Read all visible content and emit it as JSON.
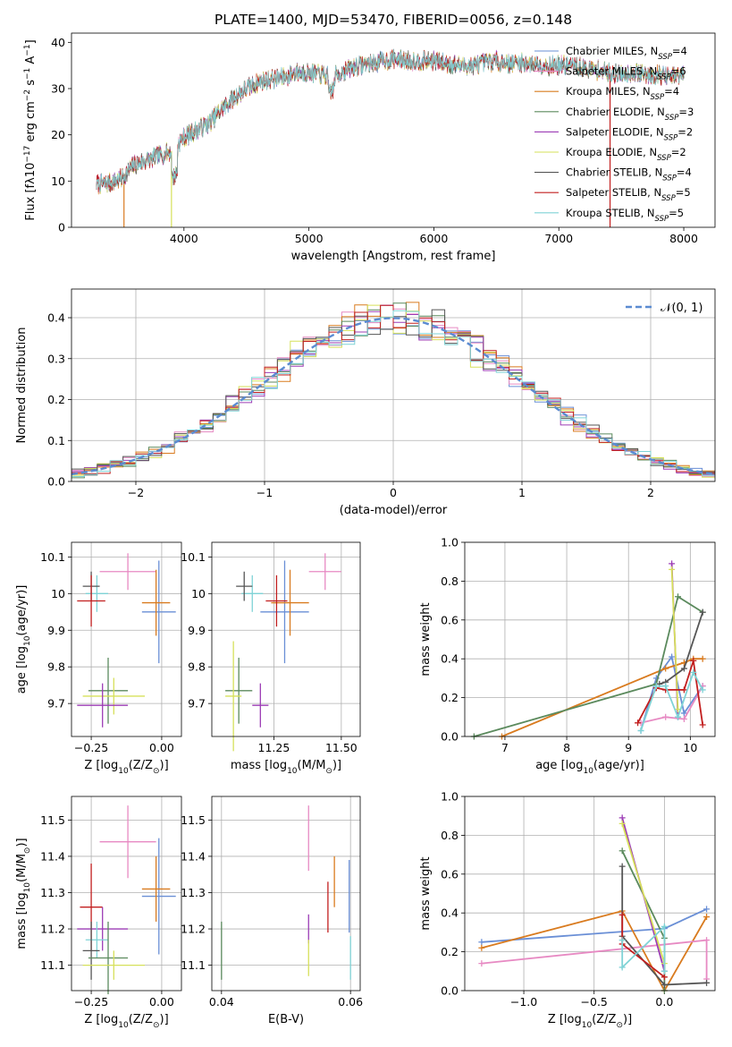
{
  "chart_data": [
    {
      "id": "spectrum",
      "type": "line",
      "title": "PLATE=1400, MJD=53470, FIBERID=0056, z=0.148",
      "xlabel": "wavelength [Angstrom, rest frame]",
      "ylabel": "Flux [fλ10⁻¹⁷ erg cm⁻² s⁻¹ A⁻¹]",
      "xlim": [
        3100,
        8250
      ],
      "ylim": [
        0,
        42
      ],
      "xticks": [
        4000,
        5000,
        6000,
        7000,
        8000
      ],
      "yticks": [
        0,
        10,
        20,
        30,
        40
      ],
      "grid": false,
      "legend_position": "top-right",
      "continuum": {
        "x": [
          3300,
          3400,
          3500,
          3600,
          3700,
          3800,
          3900,
          4000,
          4100,
          4200,
          4300,
          4400,
          4500,
          4600,
          4700,
          4800,
          4900,
          5000,
          5100,
          5200,
          5300,
          5400,
          5500,
          5600,
          5700,
          5800,
          5900,
          6000,
          6100,
          6200,
          6300,
          6400,
          6500,
          6600,
          6700,
          6800,
          6900,
          7000,
          7100,
          7200,
          7300,
          7400,
          7500,
          7600,
          7700,
          7800,
          7900,
          8000
        ],
        "y": [
          9.3,
          9.5,
          10.5,
          13.5,
          14.5,
          15.5,
          16.5,
          19.5,
          21.0,
          22.5,
          25.5,
          28.0,
          30.0,
          31.5,
          32.0,
          32.5,
          33.5,
          33.5,
          33.0,
          32.5,
          34.0,
          35.0,
          35.5,
          36.0,
          36.5,
          36.0,
          36.0,
          36.0,
          35.5,
          35.0,
          35.0,
          35.5,
          36.0,
          35.5,
          35.5,
          35.5,
          35.0,
          35.0,
          35.0,
          34.5,
          34.0,
          33.5,
          33.0,
          33.5,
          33.0,
          33.0,
          32.5,
          33.0
        ]
      },
      "series": [
        {
          "name": "Chabrier MILES, N_SSP=4",
          "color": "#6a8fd6",
          "drop_at": null
        },
        {
          "name": "Salpeter MILES, N_SSP=6",
          "color": "#e78ac3",
          "drop_at": null
        },
        {
          "name": "Kroupa MILES, N_SSP=4",
          "color": "#d97b1f",
          "drop_at": 3520
        },
        {
          "name": "Chabrier ELODIE, N_SSP=3",
          "color": "#5b8a5d",
          "drop_at": null
        },
        {
          "name": "Salpeter ELODIE, N_SSP=2",
          "color": "#9c3cb5",
          "drop_at": null
        },
        {
          "name": "Kroupa ELODIE, N_SSP=2",
          "color": "#d6e05a",
          "drop_at": 3900
        },
        {
          "name": "Chabrier STELIB, N_SSP=4",
          "color": "#555555",
          "drop_at": null
        },
        {
          "name": "Salpeter STELIB, N_SSP=5",
          "color": "#c21f1f",
          "drop_at": 7410
        },
        {
          "name": "Kroupa STELIB, N_SSP=5",
          "color": "#7fd3d6",
          "drop_at": null
        }
      ],
      "legend_labels": [
        {
          "prefix": "Chabrier MILES, N",
          "sub": "SSP",
          "suffix": "=4"
        },
        {
          "prefix": "Salpeter MILES, N",
          "sub": "SSP",
          "suffix": "=6"
        },
        {
          "prefix": "Kroupa MILES, N",
          "sub": "SSP",
          "suffix": "=4"
        },
        {
          "prefix": "Chabrier ELODIE, N",
          "sub": "SSP",
          "suffix": "=3"
        },
        {
          "prefix": "Salpeter ELODIE, N",
          "sub": "SSP",
          "suffix": "=2"
        },
        {
          "prefix": "Kroupa ELODIE, N",
          "sub": "SSP",
          "suffix": "=2"
        },
        {
          "prefix": "Chabrier STELIB, N",
          "sub": "SSP",
          "suffix": "=4"
        },
        {
          "prefix": "Salpeter STELIB, N",
          "sub": "SSP",
          "suffix": "=5"
        },
        {
          "prefix": "Kroupa STELIB, N",
          "sub": "SSP",
          "suffix": "=5"
        }
      ]
    },
    {
      "id": "residuals",
      "type": "histogram",
      "xlabel": "(data-model)/error",
      "ylabel": "Normed distribution",
      "xlim": [
        -2.5,
        2.5
      ],
      "ylim": [
        0,
        0.47
      ],
      "xticks": [
        -2,
        -1,
        0,
        1,
        2
      ],
      "yticks": [
        0.0,
        0.1,
        0.2,
        0.3,
        0.4
      ],
      "grid": true,
      "legend": "𝒩(0, 1)",
      "legend_position": "top-right",
      "bin_width": 0.1,
      "series_colors": [
        "#6a8fd6",
        "#e78ac3",
        "#d97b1f",
        "#5b8a5d",
        "#9c3cb5",
        "#d6e05a",
        "#555555",
        "#c21f1f",
        "#7fd3d6"
      ]
    },
    {
      "id": "age-vs-Z",
      "type": "errorbar",
      "xlabel": "Z [log₁₀(Z/Z⊙)]",
      "ylabel": "age  [log₁₀(age/yr)]",
      "xlim": [
        -0.32,
        0.07
      ],
      "ylim": [
        9.61,
        10.14
      ],
      "xticks": [
        -0.25,
        0.0
      ],
      "xticklabels": [
        "−0.25",
        "0.00"
      ],
      "yticks": [
        9.7,
        9.8,
        9.9,
        10.0,
        10.1
      ],
      "grid": true,
      "points": [
        {
          "x": -0.12,
          "y": 10.06,
          "xerr": 0.1,
          "yerr": 0.05,
          "color": "#e78ac3"
        },
        {
          "x": -0.01,
          "y": 9.95,
          "xerr": 0.06,
          "yerr": 0.14,
          "color": "#6a8fd6"
        },
        {
          "x": -0.02,
          "y": 9.975,
          "xerr": 0.05,
          "yerr": 0.09,
          "color": "#d97b1f"
        },
        {
          "x": -0.23,
          "y": 10.0,
          "xerr": 0.04,
          "yerr": 0.05,
          "color": "#7fd3d6"
        },
        {
          "x": -0.25,
          "y": 10.02,
          "xerr": 0.03,
          "yerr": 0.04,
          "color": "#555555"
        },
        {
          "x": -0.25,
          "y": 9.98,
          "xerr": 0.05,
          "yerr": 0.07,
          "color": "#c21f1f"
        },
        {
          "x": -0.19,
          "y": 9.735,
          "xerr": 0.07,
          "yerr": 0.09,
          "color": "#5b8a5d"
        },
        {
          "x": -0.17,
          "y": 9.72,
          "xerr": 0.11,
          "yerr": 0.05,
          "color": "#d6e05a"
        },
        {
          "x": -0.21,
          "y": 9.695,
          "xerr": 0.09,
          "yerr": 0.06,
          "color": "#9c3cb5"
        }
      ]
    },
    {
      "id": "age-vs-mass",
      "type": "errorbar",
      "xlabel": "mass [log₁₀(M/M⊙)]",
      "ylabel": "",
      "xlim": [
        11.02,
        11.57
      ],
      "ylim": [
        9.61,
        10.14
      ],
      "xticks": [
        11.25,
        11.5
      ],
      "xticklabels": [
        "11.25",
        "11.50"
      ],
      "yticks": [
        9.7,
        9.8,
        9.9,
        10.0,
        10.1
      ],
      "grid": true,
      "points": [
        {
          "x": 11.44,
          "y": 10.06,
          "xerr": 0.06,
          "yerr": 0.05,
          "color": "#e78ac3"
        },
        {
          "x": 11.29,
          "y": 9.95,
          "xerr": 0.09,
          "yerr": 0.14,
          "color": "#6a8fd6"
        },
        {
          "x": 11.31,
          "y": 9.975,
          "xerr": 0.07,
          "yerr": 0.09,
          "color": "#d97b1f"
        },
        {
          "x": 11.17,
          "y": 10.0,
          "xerr": 0.04,
          "yerr": 0.05,
          "color": "#7fd3d6"
        },
        {
          "x": 11.14,
          "y": 10.02,
          "xerr": 0.03,
          "yerr": 0.04,
          "color": "#555555"
        },
        {
          "x": 11.26,
          "y": 9.98,
          "xerr": 0.04,
          "yerr": 0.07,
          "color": "#c21f1f"
        },
        {
          "x": 11.12,
          "y": 9.735,
          "xerr": 0.05,
          "yerr": 0.09,
          "color": "#5b8a5d"
        },
        {
          "x": 11.1,
          "y": 9.72,
          "xerr": 0.03,
          "yerr": 0.15,
          "color": "#d6e05a"
        },
        {
          "x": 11.2,
          "y": 9.695,
          "xerr": 0.03,
          "yerr": 0.06,
          "color": "#9c3cb5"
        }
      ]
    },
    {
      "id": "weight-vs-age",
      "type": "line",
      "xlabel": "age  [log₁₀(age/yr)]",
      "ylabel": "mass weight",
      "xlim": [
        6.35,
        10.4
      ],
      "ylim": [
        0,
        1.0
      ],
      "xticks": [
        7,
        8,
        9,
        10
      ],
      "yticks": [
        0.0,
        0.2,
        0.4,
        0.6,
        0.8,
        1.0
      ],
      "grid": true,
      "series": [
        {
          "color": "#6a8fd6",
          "x": [
            9.2,
            9.45,
            9.7,
            9.9,
            10.2
          ],
          "y": [
            0.03,
            0.3,
            0.41,
            0.12,
            0.26
          ]
        },
        {
          "color": "#e78ac3",
          "x": [
            9.2,
            9.6,
            9.9,
            10.2
          ],
          "y": [
            0.07,
            0.1,
            0.09,
            0.26
          ]
        },
        {
          "color": "#d97b1f",
          "x": [
            6.95,
            9.6,
            9.9,
            10.05,
            10.2
          ],
          "y": [
            0.0,
            0.35,
            0.38,
            0.4,
            0.4
          ]
        },
        {
          "color": "#5b8a5d",
          "x": [
            6.5,
            9.45,
            9.8,
            10.2
          ],
          "y": [
            0.0,
            0.27,
            0.72,
            0.64
          ]
        },
        {
          "color": "#9c3cb5",
          "x": [
            9.7,
            9.8
          ],
          "y": [
            0.89,
            0.1
          ]
        },
        {
          "color": "#d6e05a",
          "x": [
            9.7,
            9.8
          ],
          "y": [
            0.86,
            0.14
          ]
        },
        {
          "color": "#555555",
          "x": [
            9.5,
            9.6,
            9.9,
            10.2
          ],
          "y": [
            0.27,
            0.28,
            0.35,
            0.64
          ]
        },
        {
          "color": "#c21f1f",
          "x": [
            9.15,
            9.45,
            9.6,
            9.9,
            10.05,
            10.2
          ],
          "y": [
            0.07,
            0.25,
            0.24,
            0.24,
            0.39,
            0.06
          ]
        },
        {
          "color": "#7fd3d6",
          "x": [
            9.2,
            9.45,
            9.6,
            9.8,
            10.05,
            10.2
          ],
          "y": [
            0.03,
            0.26,
            0.26,
            0.1,
            0.33,
            0.24
          ]
        }
      ]
    },
    {
      "id": "mass-vs-Z",
      "type": "errorbar",
      "xlabel": "Z [log₁₀(Z/Z⊙)]",
      "ylabel": "mass [log₁₀(M/M⊙)]",
      "xlim": [
        -0.32,
        0.07
      ],
      "ylim": [
        11.03,
        11.565
      ],
      "xticks": [
        -0.25,
        0.0
      ],
      "xticklabels": [
        "−0.25",
        "0.00"
      ],
      "yticks": [
        11.1,
        11.2,
        11.3,
        11.4,
        11.5
      ],
      "grid": true,
      "points": [
        {
          "x": -0.12,
          "y": 11.44,
          "xerr": 0.1,
          "yerr": 0.1,
          "color": "#e78ac3"
        },
        {
          "x": -0.01,
          "y": 11.29,
          "xerr": 0.06,
          "yerr": 0.16,
          "color": "#6a8fd6"
        },
        {
          "x": -0.02,
          "y": 11.31,
          "xerr": 0.05,
          "yerr": 0.09,
          "color": "#d97b1f"
        },
        {
          "x": -0.25,
          "y": 11.26,
          "xerr": 0.04,
          "yerr": 0.12,
          "color": "#c21f1f"
        },
        {
          "x": -0.21,
          "y": 11.2,
          "xerr": 0.09,
          "yerr": 0.06,
          "color": "#9c3cb5"
        },
        {
          "x": -0.23,
          "y": 11.17,
          "xerr": 0.04,
          "yerr": 0.05,
          "color": "#7fd3d6"
        },
        {
          "x": -0.25,
          "y": 11.14,
          "xerr": 0.03,
          "yerr": 0.08,
          "color": "#555555"
        },
        {
          "x": -0.19,
          "y": 11.12,
          "xerr": 0.07,
          "yerr": 0.1,
          "color": "#5b8a5d"
        },
        {
          "x": -0.17,
          "y": 11.1,
          "xerr": 0.11,
          "yerr": 0.04,
          "color": "#d6e05a"
        }
      ]
    },
    {
      "id": "mass-vs-ebv",
      "type": "errorbar",
      "xlabel": "E(B-V)",
      "ylabel": "",
      "xlim": [
        0.0385,
        0.0615
      ],
      "ylim": [
        11.03,
        11.565
      ],
      "xticks": [
        0.04,
        0.06
      ],
      "xticklabels": [
        "0.04",
        "0.06"
      ],
      "yticks": [
        11.1,
        11.2,
        11.3,
        11.4,
        11.5
      ],
      "grid": true,
      "points": [
        {
          "x": 0.0535,
          "y": 11.45,
          "xerr": 0,
          "yerr": 0.09,
          "color": "#e78ac3"
        },
        {
          "x": 0.0598,
          "y": 11.29,
          "xerr": 0,
          "yerr": 0.1,
          "color": "#6a8fd6"
        },
        {
          "x": 0.0575,
          "y": 11.33,
          "xerr": 0,
          "yerr": 0.07,
          "color": "#d97b1f"
        },
        {
          "x": 0.0565,
          "y": 11.26,
          "xerr": 0,
          "yerr": 0.07,
          "color": "#c21f1f"
        },
        {
          "x": 0.0535,
          "y": 11.2,
          "xerr": 0,
          "yerr": 0.04,
          "color": "#9c3cb5"
        },
        {
          "x": 0.0535,
          "y": 11.12,
          "xerr": 0,
          "yerr": 0.05,
          "color": "#d6e05a"
        },
        {
          "x": 0.06,
          "y": 11.12,
          "xerr": 0,
          "yerr": 0.06,
          "color": "#7fd3d6"
        },
        {
          "x": 0.04,
          "y": 11.14,
          "xerr": 0,
          "yerr": 0.08,
          "color": "#5b8a5d"
        }
      ]
    },
    {
      "id": "weight-vs-Z",
      "type": "line",
      "xlabel": "Z [log₁₀(Z/Z⊙)]",
      "ylabel": "mass weight",
      "xlim": [
        -1.42,
        0.36
      ],
      "ylim": [
        0,
        1.0
      ],
      "xticks": [
        -1.0,
        -0.5,
        0.0
      ],
      "xticklabels": [
        "−1.0",
        "−0.5",
        "0.0"
      ],
      "yticks": [
        0.0,
        0.2,
        0.4,
        0.6,
        0.8,
        1.0
      ],
      "grid": true,
      "series": [
        {
          "color": "#6a8fd6",
          "x": [
            -1.3,
            0.0,
            0.3
          ],
          "y": [
            0.25,
            0.32,
            0.42
          ]
        },
        {
          "color": "#d97b1f",
          "x": [
            -1.3,
            -0.3,
            0.0,
            0.3
          ],
          "y": [
            0.22,
            0.41,
            0.0,
            0.38
          ]
        },
        {
          "color": "#e78ac3",
          "x": [
            -1.3,
            0.3,
            0.3
          ],
          "y": [
            0.14,
            0.26,
            0.06
          ]
        },
        {
          "color": "#5b8a5d",
          "x": [
            -0.3,
            0.0,
            0.0
          ],
          "y": [
            0.72,
            0.27,
            0.0
          ]
        },
        {
          "color": "#9c3cb5",
          "x": [
            -0.3,
            0.0
          ],
          "y": [
            0.89,
            0.1
          ]
        },
        {
          "color": "#d6e05a",
          "x": [
            -0.3,
            0.0
          ],
          "y": [
            0.86,
            0.14
          ]
        },
        {
          "color": "#555555",
          "x": [
            -0.3,
            -0.3,
            0.0,
            0.3
          ],
          "y": [
            0.64,
            0.28,
            0.03,
            0.04
          ]
        },
        {
          "color": "#c21f1f",
          "x": [
            -0.3,
            -0.3,
            0.0
          ],
          "y": [
            0.39,
            0.24,
            0.07
          ]
        },
        {
          "color": "#7fd3d6",
          "x": [
            -0.3,
            -0.3,
            0.0,
            0.0
          ],
          "y": [
            0.26,
            0.12,
            0.33,
            0.1
          ]
        }
      ]
    }
  ]
}
